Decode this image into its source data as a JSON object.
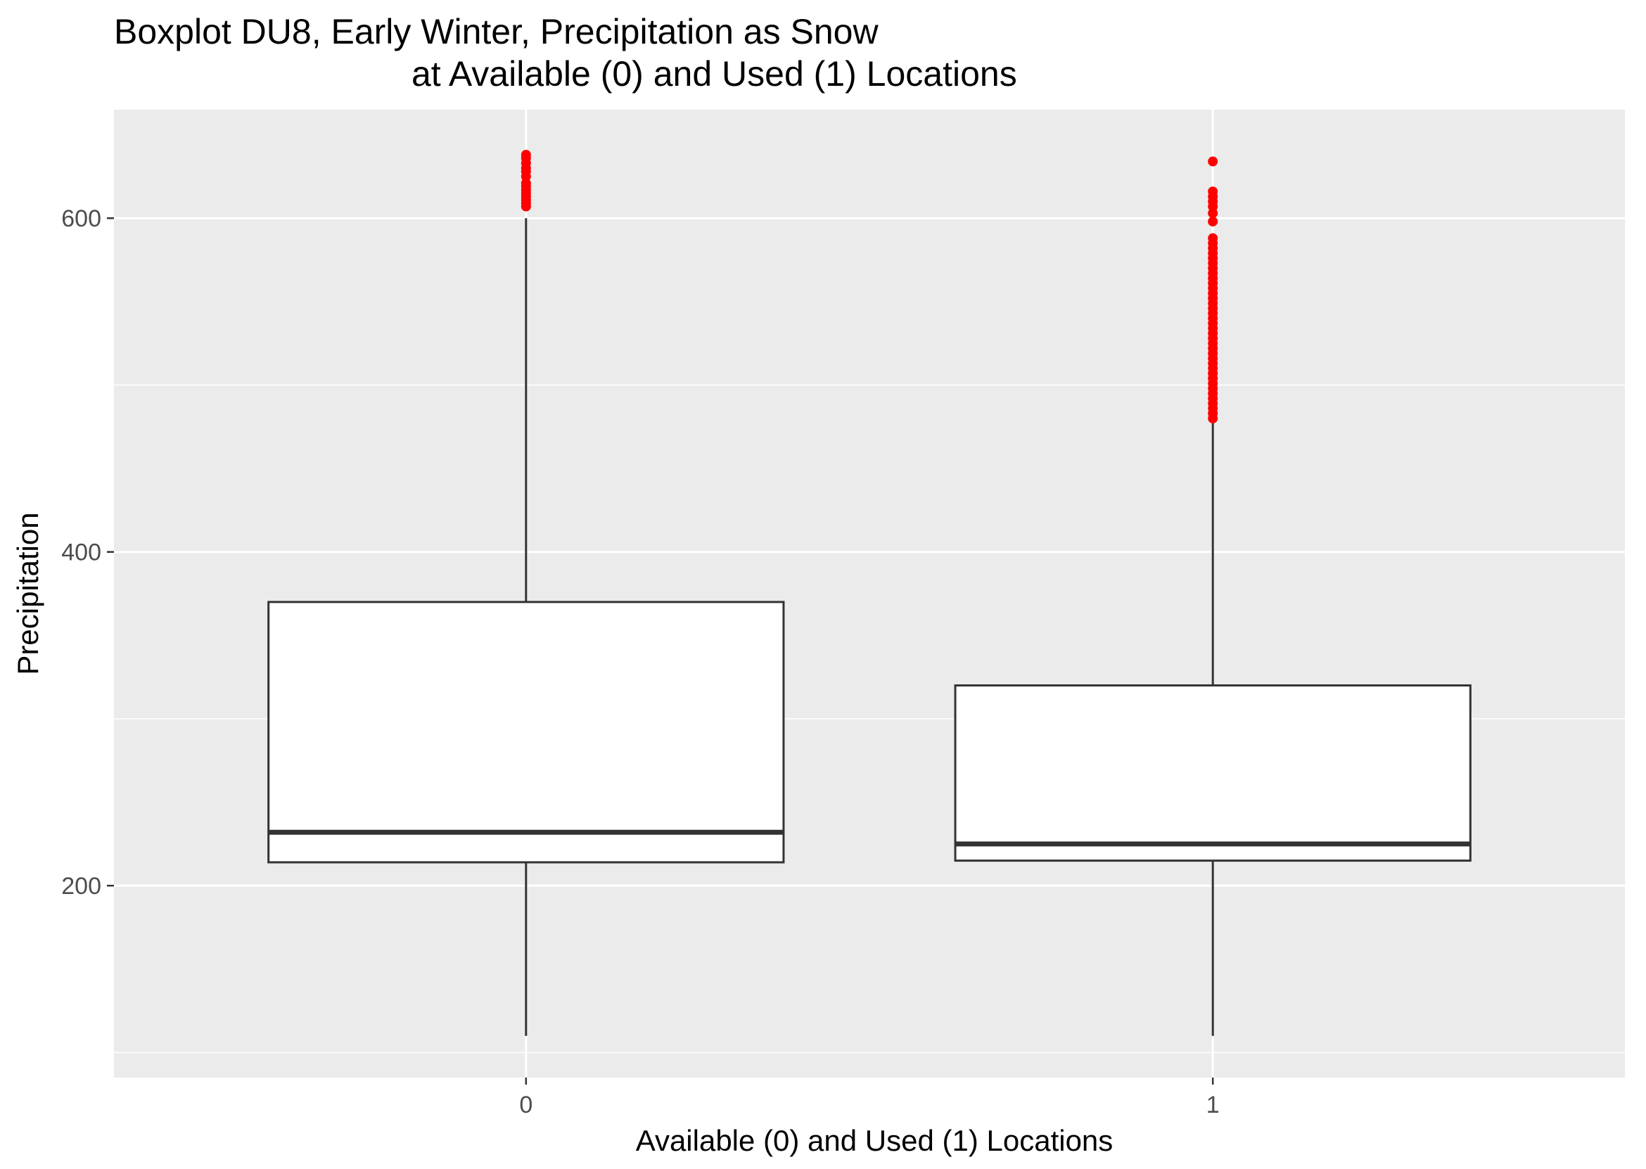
{
  "chart_data": {
    "type": "boxplot",
    "title_lines": [
      "Boxplot DU8, Early Winter, Precipitation as Snow",
      "at Available (0) and Used (1) Locations"
    ],
    "xlabel": "Available (0) and Used (1) Locations",
    "ylabel": "Precipitation",
    "categories": [
      "0",
      "1"
    ],
    "y_ticks": [
      200,
      400,
      600
    ],
    "y_tick_labels": [
      "200",
      "400",
      "600"
    ],
    "ylim": [
      85,
      665
    ],
    "grid": true,
    "panel_background": "#ebebeb",
    "box_fill": "#ffffff",
    "box_stroke": "#333333",
    "outlier_color": "#ff0000",
    "boxes": [
      {
        "category": "0",
        "whisker_low": 110,
        "q1": 214,
        "median": 232,
        "q3": 370,
        "whisker_high": 600,
        "outliers": [
          607,
          609,
          611,
          613,
          615,
          617,
          619,
          621,
          625,
          628,
          630,
          633,
          636,
          638
        ]
      },
      {
        "category": "1",
        "whisker_low": 110,
        "q1": 215,
        "median": 225,
        "q3": 320,
        "whisker_high": 478,
        "outliers": [
          480,
          483,
          486,
          489,
          492,
          495,
          498,
          501,
          504,
          507,
          510,
          513,
          516,
          519,
          522,
          525,
          528,
          531,
          534,
          537,
          540,
          543,
          546,
          549,
          552,
          555,
          558,
          561,
          564,
          567,
          570,
          573,
          576,
          579,
          582,
          585,
          588,
          598,
          603,
          607,
          610,
          613,
          616,
          634
        ]
      }
    ]
  }
}
